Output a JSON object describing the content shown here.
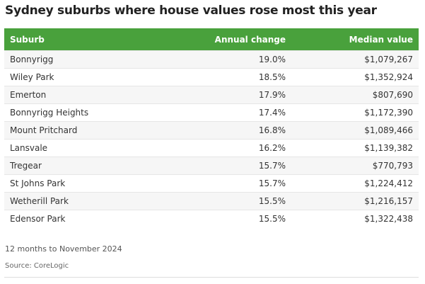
{
  "title": "Sydney suburbs where house values rose most this year",
  "note": "12 months to November 2024",
  "source": "Source: CoreLogic",
  "colors": {
    "header_bg": "#49a13c",
    "header_text": "#ffffff",
    "row_alt_bg": "#f6f6f6"
  },
  "chart_data": {
    "type": "table",
    "title": "Sydney suburbs where house values rose most this year",
    "columns": [
      "Suburb",
      "Annual change",
      "Median value"
    ],
    "rows": [
      [
        "Bonnyrigg",
        "19.0%",
        "$1,079,267"
      ],
      [
        "Wiley Park",
        "18.5%",
        "$1,352,924"
      ],
      [
        "Emerton",
        "17.9%",
        "$807,690"
      ],
      [
        "Bonnyrigg Heights",
        "17.4%",
        "$1,172,390"
      ],
      [
        "Mount Pritchard",
        "16.8%",
        "$1,089,466"
      ],
      [
        "Lansvale",
        "16.2%",
        "$1,139,382"
      ],
      [
        "Tregear",
        "15.7%",
        "$770,793"
      ],
      [
        "St Johns Park",
        "15.7%",
        "$1,224,412"
      ],
      [
        "Wetherill Park",
        "15.5%",
        "$1,216,157"
      ],
      [
        "Edensor Park",
        "15.5%",
        "$1,322,438"
      ]
    ]
  }
}
